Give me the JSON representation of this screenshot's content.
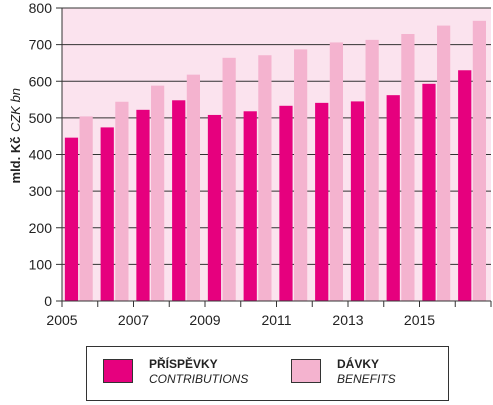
{
  "chart_data": {
    "type": "bar",
    "x": [
      2005,
      2006,
      2007,
      2008,
      2009,
      2010,
      2011,
      2012,
      2013,
      2014,
      2015,
      2016
    ],
    "x_tick_labels": [
      "2005",
      "2007",
      "2009",
      "2011",
      "2013",
      "2015"
    ],
    "series": [
      {
        "name": "PŘÍSPĚVKY",
        "name_en": "CONTRIBUTIONS",
        "color": "#e6007e",
        "values": [
          446,
          474,
          522,
          548,
          508,
          518,
          533,
          541,
          545,
          562,
          593,
          630
        ]
      },
      {
        "name": "DÁVKY",
        "name_en": "BENEFITS",
        "color": "#f4b3cf",
        "values": [
          504,
          544,
          588,
          618,
          664,
          671,
          687,
          706,
          713,
          729,
          752,
          765
        ]
      }
    ],
    "ylabel": "mld. Kč",
    "ylabel_en": "CZK bn",
    "ylim": [
      0,
      800
    ],
    "y_ticks": [
      0,
      100,
      200,
      300,
      400,
      500,
      600,
      700,
      800
    ],
    "plot_background": "#fbe3ee",
    "grid": true,
    "legend_position": "bottom"
  },
  "legend": {
    "contributions_cz": "PŘÍSPĚVKY",
    "contributions_en": "CONTRIBUTIONS",
    "benefits_cz": "DÁVKY",
    "benefits_en": "BENEFITS"
  }
}
